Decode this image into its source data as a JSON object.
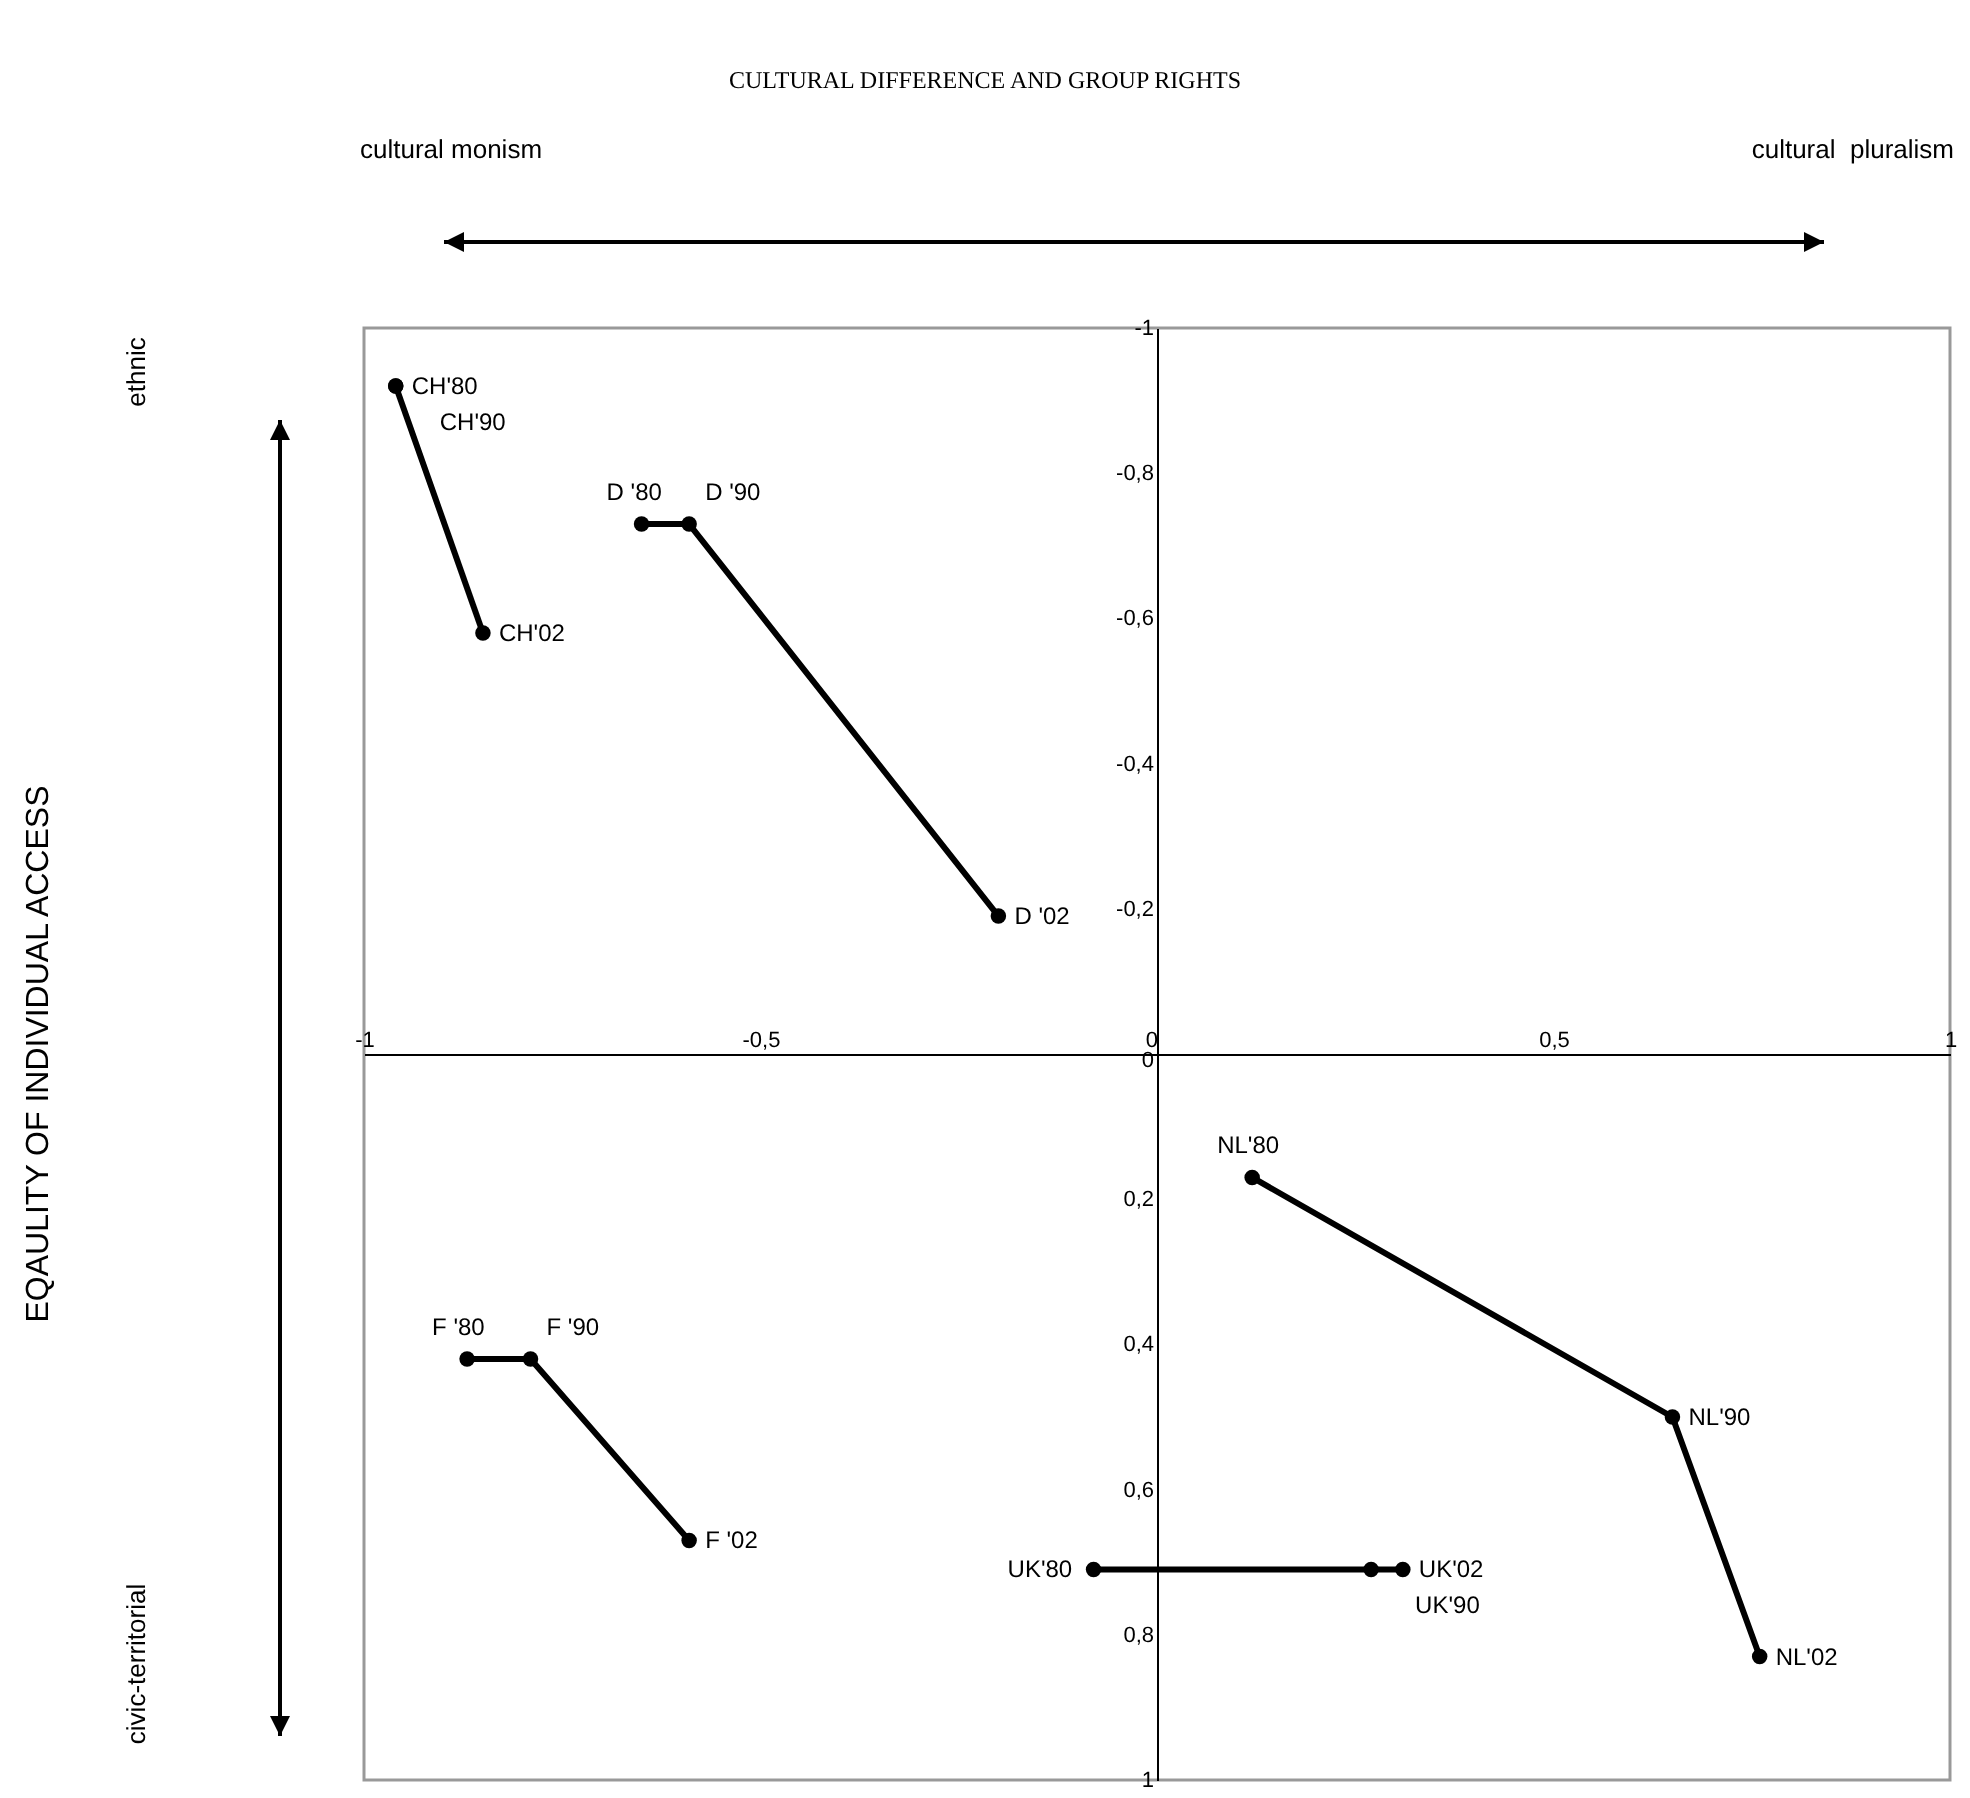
{
  "chart_data": {
    "type": "line",
    "title": "CULTURAL DIFFERENCE AND GROUP RIGHTS",
    "annotations": [
      "cultural monism",
      "cultural  pluralism",
      "ethnic",
      "civic-territorial",
      "EQAULITY OF INDIVIDUAL ACCESS",
      {
        "text": "CH'80",
        "x": -0.96,
        "y": -0.92
      },
      {
        "text": "CH'90",
        "x": -0.96,
        "y": -0.92
      },
      {
        "text": "CH'02",
        "x": -0.85,
        "y": -0.58
      },
      {
        "text": "D '80",
        "x": -0.65,
        "y": -0.73
      },
      {
        "text": "D '90",
        "x": -0.59,
        "y": -0.73
      },
      {
        "text": "D '02",
        "x": -0.2,
        "y": -0.19
      },
      {
        "text": "F '80",
        "x": -0.87,
        "y": 0.42
      },
      {
        "text": "F '90",
        "x": -0.79,
        "y": 0.42
      },
      {
        "text": "F '02",
        "x": -0.59,
        "y": 0.67
      },
      {
        "text": "UK'80",
        "x": -0.08,
        "y": 0.71
      },
      {
        "text": "UK'90",
        "x": 0.27,
        "y": 0.71
      },
      {
        "text": "UK'02",
        "x": 0.31,
        "y": 0.71
      },
      {
        "text": "NL'80",
        "x": 0.12,
        "y": 0.17
      },
      {
        "text": "NL'90",
        "x": 0.65,
        "y": 0.5
      },
      {
        "text": "NL'02",
        "x": 0.76,
        "y": 0.83
      }
    ],
    "series": [
      {
        "color": "#000000",
        "x": [
          -0.96,
          -0.96,
          -0.85
        ],
        "values": [
          -0.92,
          -0.92,
          -0.58
        ]
      },
      {
        "color": "#000000",
        "x": [
          -0.65,
          -0.59,
          -0.2
        ],
        "values": [
          -0.73,
          -0.73,
          -0.19
        ]
      },
      {
        "color": "#000000",
        "x": [
          -0.87,
          -0.79,
          -0.59
        ],
        "values": [
          0.42,
          0.42,
          0.67
        ]
      },
      {
        "color": "#000000",
        "x": [
          -0.08,
          0.27,
          0.31
        ],
        "values": [
          0.71,
          0.71,
          0.71
        ]
      },
      {
        "color": "#000000",
        "x": [
          0.12,
          0.65,
          0.76
        ],
        "values": [
          0.17,
          0.5,
          0.83
        ]
      }
    ],
    "xlim": [
      -1,
      1
    ],
    "xticks": [
      -1,
      {
        "value": -0.5,
        "label": "-0,5"
      },
      0,
      {
        "value": 0.5,
        "label": "0,5"
      },
      1
    ],
    "ylim": [
      1,
      -1
    ],
    "yticks": [
      -1,
      {
        "value": -0.8,
        "label": "-0,8"
      },
      {
        "value": -0.6,
        "label": "-0,6"
      },
      {
        "value": -0.4,
        "label": "-0,4"
      },
      {
        "value": -0.2,
        "label": "-0,2"
      },
      0,
      {
        "value": 0.2,
        "label": "0,2"
      },
      {
        "value": 0.4,
        "label": "0,4"
      },
      {
        "value": 0.6,
        "label": "0,6"
      },
      {
        "value": 0.8,
        "label": "0,8"
      },
      1
    ],
    "grid": false,
    "legend": false,
    "marker": "circle",
    "line_style": "solid"
  }
}
